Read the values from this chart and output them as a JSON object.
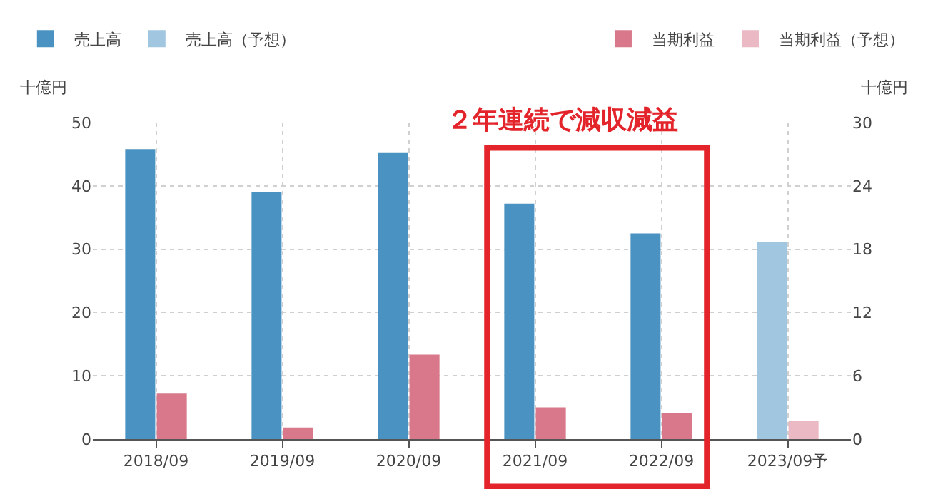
{
  "chart_data": {
    "type": "bar",
    "categories": [
      "2018/09",
      "2019/09",
      "2020/09",
      "2021/09",
      "2022/09",
      "2023/09予"
    ],
    "series": [
      {
        "name": "売上高",
        "color": "#4a92c2",
        "axis": "y",
        "values": [
          45.8,
          39.0,
          45.3,
          37.2,
          32.5,
          null
        ]
      },
      {
        "name": "売上高（予想）",
        "color": "#a1c6e0",
        "axis": "y",
        "values": [
          null,
          null,
          null,
          null,
          null,
          31.1
        ]
      },
      {
        "name": "当期利益",
        "color": "#d8788a",
        "axis": "y2",
        "values": [
          4.3,
          1.1,
          8.0,
          3.0,
          2.5,
          null
        ]
      },
      {
        "name": "当期利益（予想）",
        "color": "#ebb9c4",
        "axis": "y2",
        "values": [
          null,
          null,
          null,
          null,
          null,
          1.7
        ]
      }
    ],
    "ylabel": "十億円",
    "y2label": "十億円",
    "ylim": [
      0,
      50
    ],
    "yticks": [
      0,
      10,
      20,
      30,
      40,
      50
    ],
    "y2lim": [
      0,
      30
    ],
    "y2ticks": [
      0,
      6,
      12,
      18,
      24,
      30
    ],
    "annotations": [
      "２年連続で減収減益"
    ],
    "grid": true,
    "legend": "top"
  }
}
